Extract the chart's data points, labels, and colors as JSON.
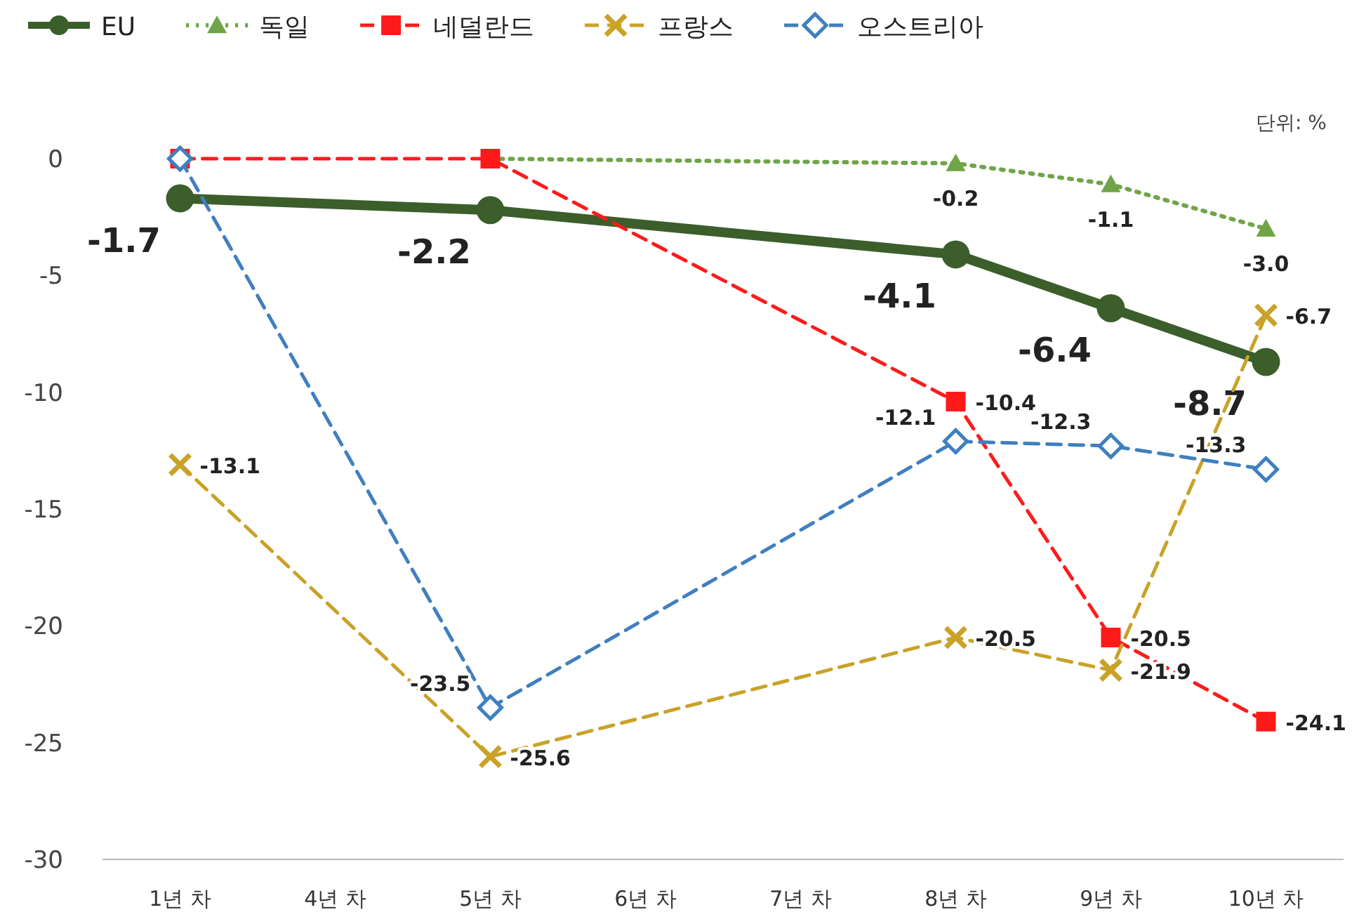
{
  "chart_data": {
    "type": "line",
    "categories": [
      "1년 차",
      "4년 차",
      "5년 차",
      "6년 차",
      "7년 차",
      "8년 차",
      "9년 차",
      "10년 차"
    ],
    "series": [
      {
        "name": "EU",
        "color": "#3b5e2b",
        "marker": "circle",
        "line_style": "solid",
        "values": [
          -1.7,
          null,
          -2.2,
          null,
          null,
          -4.1,
          -6.4,
          -8.7
        ],
        "value_labels": [
          "-1.7",
          null,
          "-2.2",
          null,
          null,
          "-4.1",
          "-6.4",
          "-8.7"
        ]
      },
      {
        "name": "독일",
        "color": "#6fa548",
        "marker": "triangle",
        "line_style": "dotted",
        "values": [
          null,
          null,
          0,
          null,
          null,
          -0.2,
          -1.1,
          -3.0
        ],
        "value_labels": [
          null,
          null,
          null,
          null,
          null,
          "-0.2",
          "-1.1",
          "-3.0"
        ]
      },
      {
        "name": "네덜란드",
        "color": "#ff1a1a",
        "marker": "square",
        "line_style": "dashed",
        "values": [
          0,
          null,
          0,
          null,
          null,
          -10.4,
          -20.5,
          -24.1
        ],
        "value_labels": [
          null,
          null,
          null,
          null,
          null,
          "-10.4",
          "-20.5",
          "-24.1"
        ]
      },
      {
        "name": "프랑스",
        "color": "#c9a227",
        "marker": "cross",
        "line_style": "dashed",
        "values": [
          -13.1,
          null,
          -25.6,
          null,
          null,
          -20.5,
          -21.9,
          -6.7
        ],
        "value_labels": [
          "-13.1",
          null,
          "-25.6",
          null,
          null,
          "-20.5",
          "-21.9",
          "-6.7"
        ]
      },
      {
        "name": "오스트리아",
        "color": "#3f7fc0",
        "marker": "diamond",
        "line_style": "dashed",
        "values": [
          0,
          null,
          -23.5,
          null,
          null,
          -12.1,
          -12.3,
          -13.3
        ],
        "value_labels": [
          null,
          null,
          "-23.5",
          null,
          null,
          "-12.1",
          "-12.3",
          "-13.3"
        ]
      }
    ],
    "ylim": [
      -30,
      0
    ],
    "yticks": [
      -30,
      -25,
      -20,
      -15,
      -10,
      -5,
      0
    ],
    "grid": false,
    "legend": "top",
    "annotations": [
      "단위: %"
    ]
  }
}
